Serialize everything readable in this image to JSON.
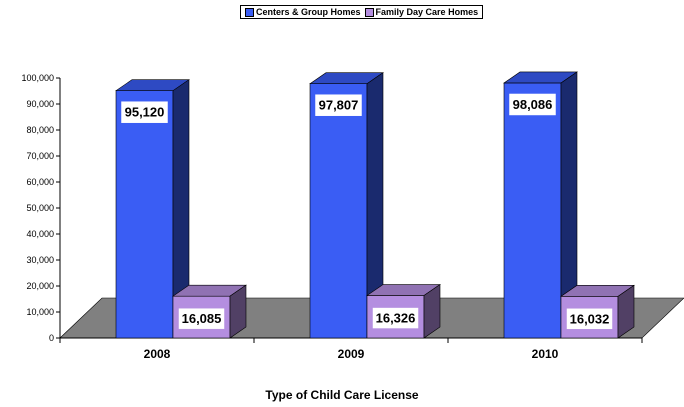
{
  "chart_data": {
    "type": "bar",
    "categories": [
      "2008",
      "2009",
      "2010"
    ],
    "series": [
      {
        "name": "Centers & Group Homes",
        "values": [
          95120,
          97807,
          98086
        ],
        "color": "#3a5df4"
      },
      {
        "name": "Family Day Care Homes",
        "values": [
          16085,
          16326,
          16032
        ],
        "color": "#b48ee0"
      }
    ],
    "data_labels": [
      [
        "95,120",
        "97,807",
        "98,086"
      ],
      [
        "16,085",
        "16,326",
        "16,032"
      ]
    ],
    "ylim": [
      0,
      100000
    ],
    "yticks": [
      "0",
      "10,000",
      "20,000",
      "30,000",
      "40,000",
      "50,000",
      "60,000",
      "70,000",
      "80,000",
      "90,000",
      "100,000"
    ],
    "xlabel": "Type of Child Care License",
    "legend_position": "top-center",
    "style": "3d"
  }
}
